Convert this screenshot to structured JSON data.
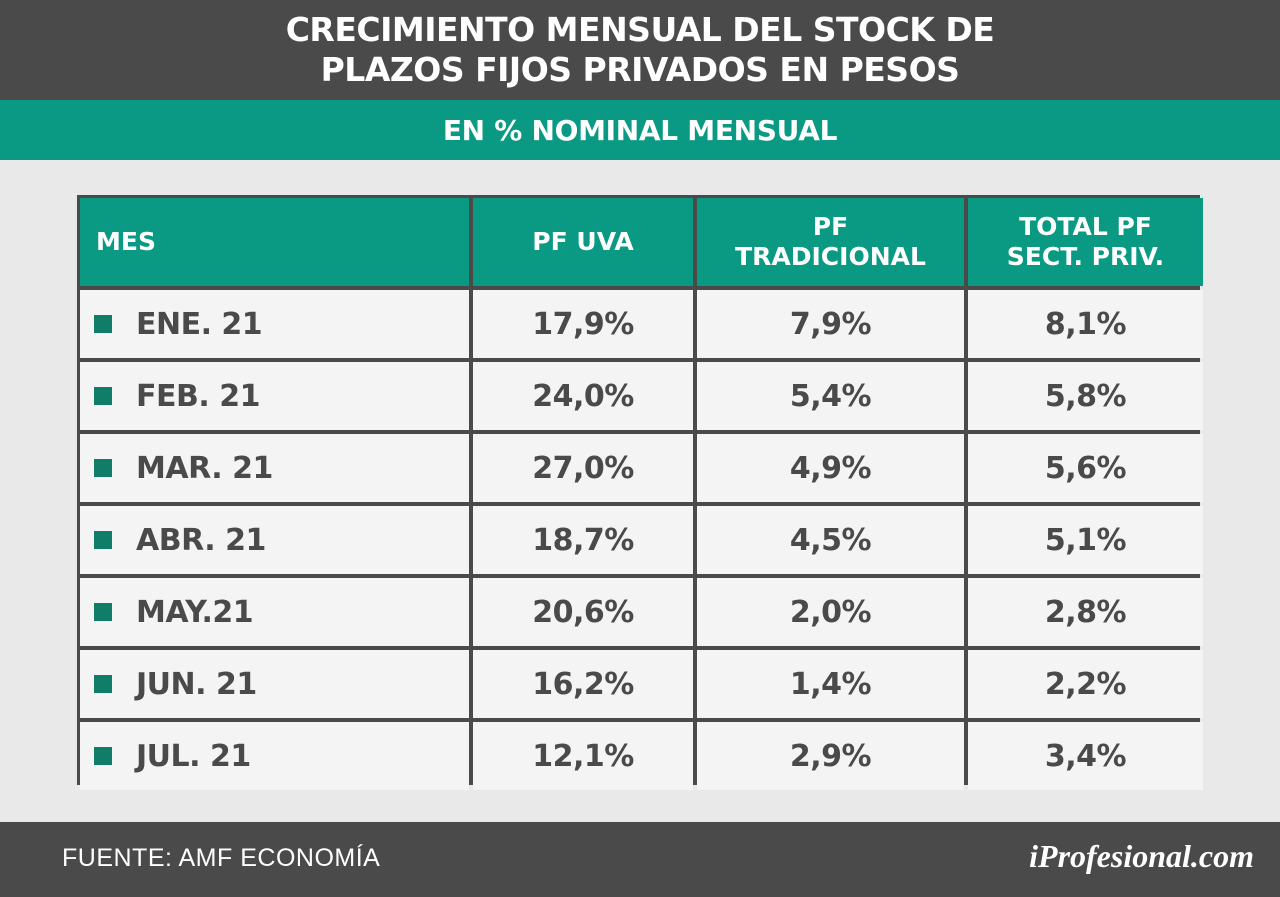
{
  "title_line1": "CRECIMIENTO MENSUAL DEL STOCK DE",
  "title_line2": "PLAZOS FIJOS PRIVADOS EN PESOS",
  "subtitle": "EN % NOMINAL MENSUAL",
  "source": "FUENTE: AMF ECONOMÍA",
  "brand": "iProfesional.com",
  "colors": {
    "header": "#4a4a4a",
    "accent": "#0a9a83",
    "text": "#4a4a4a"
  },
  "chart_data": {
    "type": "table",
    "title": "CRECIMIENTO MENSUAL DEL STOCK DE PLAZOS FIJOS PRIVADOS EN PESOS",
    "subtitle": "EN % NOMINAL MENSUAL",
    "columns": [
      "MES",
      "PF UVA",
      "PF\nTRADICIONAL",
      "TOTAL PF\nSECT. PRIV."
    ],
    "rows": [
      [
        "ENE. 21",
        "17,9%",
        "7,9%",
        "8,1%"
      ],
      [
        "FEB. 21",
        "24,0%",
        "5,4%",
        "5,8%"
      ],
      [
        "MAR. 21",
        "27,0%",
        "4,9%",
        "5,6%"
      ],
      [
        "ABR. 21",
        "18,7%",
        "4,5%",
        "5,1%"
      ],
      [
        "MAY.21",
        "20,6%",
        "2,0%",
        "2,8%"
      ],
      [
        "JUN. 21",
        "16,2%",
        "1,4%",
        "2,2%"
      ],
      [
        "JUL. 21",
        "12,1%",
        "2,9%",
        "3,4%"
      ]
    ]
  }
}
